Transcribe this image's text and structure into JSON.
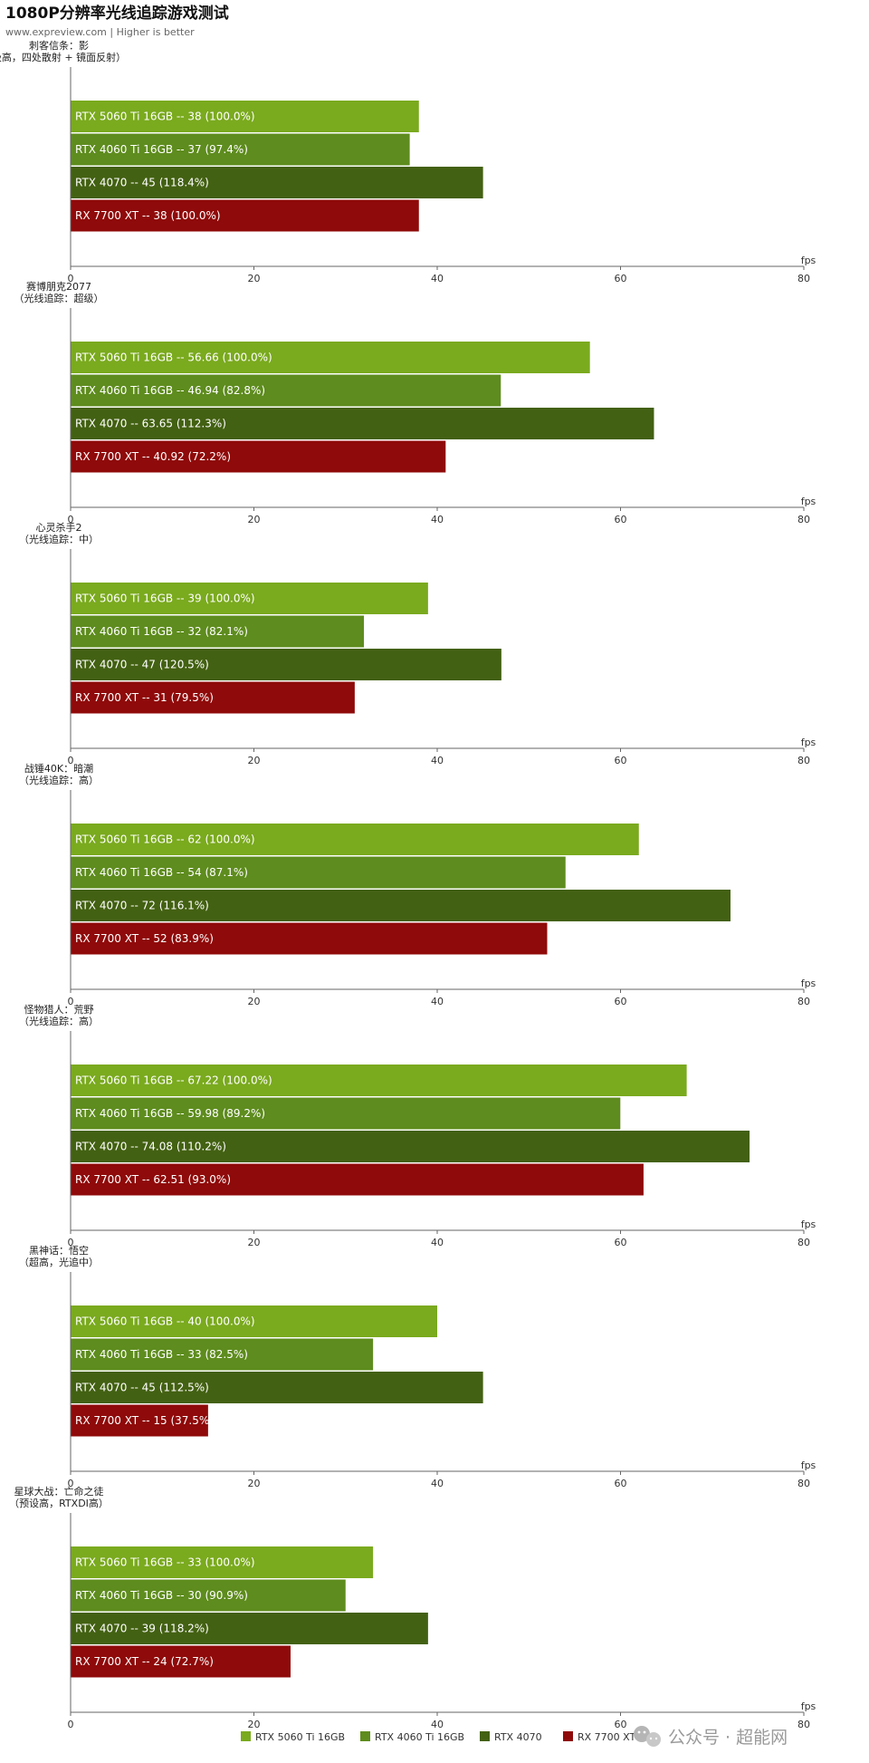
{
  "header": {
    "title": "1080P分辨率光线追踪游戏测试",
    "subtitle": "www.expreview.com | Higher is better"
  },
  "chart_data": {
    "type": "bar",
    "orientation": "horizontal",
    "unit": "fps",
    "xlim": [
      0,
      80
    ],
    "ticks": [
      "0",
      "20",
      "40",
      "60",
      "80"
    ],
    "grid": false,
    "legend_position": "bottom",
    "series": [
      {
        "name": "RTX 5060 Ti 16GB",
        "color": "#7aaa1e"
      },
      {
        "name": "RTX 4060 Ti 16GB",
        "color": "#5e8c1e"
      },
      {
        "name": "RTX 4070",
        "color": "#436112"
      },
      {
        "name": "RX 7700 XT",
        "color": "#8f0a0a"
      }
    ],
    "groups": [
      {
        "name_lines": [
          "刺客信条：影",
          "极高，四处散射 + 镜面反射）"
        ],
        "bars": [
          {
            "value": 38,
            "label": "RTX 5060 Ti 16GB  --  38 (100.0%)"
          },
          {
            "value": 37,
            "label": "RTX 4060 Ti 16GB  --  37 (97.4%)"
          },
          {
            "value": 45,
            "label": "RTX 4070  --  45 (118.4%)"
          },
          {
            "value": 38,
            "label": "RX 7700 XT  --  38 (100.0%)"
          }
        ]
      },
      {
        "name_lines": [
          "赛博朋克2077",
          "（光线追踪：超级）"
        ],
        "bars": [
          {
            "value": 56.66,
            "label": "RTX 5060 Ti 16GB  --  56.66 (100.0%)"
          },
          {
            "value": 46.94,
            "label": "RTX 4060 Ti 16GB  --  46.94 (82.8%)"
          },
          {
            "value": 63.65,
            "label": "RTX 4070  --  63.65 (112.3%)"
          },
          {
            "value": 40.92,
            "label": "RX 7700 XT  --  40.92 (72.2%)"
          }
        ]
      },
      {
        "name_lines": [
          "心灵杀手2",
          "（光线追踪：中）"
        ],
        "bars": [
          {
            "value": 39,
            "label": "RTX 5060 Ti 16GB  --  39 (100.0%)"
          },
          {
            "value": 32,
            "label": "RTX 4060 Ti 16GB  --  32 (82.1%)"
          },
          {
            "value": 47,
            "label": "RTX 4070  --  47 (120.5%)"
          },
          {
            "value": 31,
            "label": "RX 7700 XT  --  31 (79.5%)"
          }
        ]
      },
      {
        "name_lines": [
          "战锤40K：暗潮",
          "（光线追踪：高）"
        ],
        "bars": [
          {
            "value": 62,
            "label": "RTX 5060 Ti 16GB  --  62 (100.0%)"
          },
          {
            "value": 54,
            "label": "RTX 4060 Ti 16GB  --  54 (87.1%)"
          },
          {
            "value": 72,
            "label": "RTX 4070  --  72 (116.1%)"
          },
          {
            "value": 52,
            "label": "RX 7700 XT  --  52 (83.9%)"
          }
        ]
      },
      {
        "name_lines": [
          "怪物猎人：荒野",
          "（光线追踪：高）"
        ],
        "bars": [
          {
            "value": 67.22,
            "label": "RTX 5060 Ti 16GB  --  67.22 (100.0%)"
          },
          {
            "value": 59.98,
            "label": "RTX 4060 Ti 16GB  --  59.98 (89.2%)"
          },
          {
            "value": 74.08,
            "label": "RTX 4070  --  74.08 (110.2%)"
          },
          {
            "value": 62.51,
            "label": "RX 7700 XT  --  62.51 (93.0%)"
          }
        ]
      },
      {
        "name_lines": [
          "黑神话：悟空",
          "（超高，光追中）"
        ],
        "bars": [
          {
            "value": 40,
            "label": "RTX 5060 Ti 16GB  --  40 (100.0%)"
          },
          {
            "value": 33,
            "label": "RTX 4060 Ti 16GB  --  33 (82.5%)"
          },
          {
            "value": 45,
            "label": "RTX 4070  --  45 (112.5%)"
          },
          {
            "value": 15,
            "label": "RX 7700 XT  --  15 (37.5%)"
          }
        ]
      },
      {
        "name_lines": [
          "星球大战：亡命之徒",
          "（预设高，RTXDI高）"
        ],
        "bars": [
          {
            "value": 33,
            "label": "RTX 5060 Ti 16GB  --  33 (100.0%)"
          },
          {
            "value": 30,
            "label": "RTX 4060 Ti 16GB  --  30 (90.9%)"
          },
          {
            "value": 39,
            "label": "RTX 4070  --  39 (118.2%)"
          },
          {
            "value": 24,
            "label": "RX 7700 XT  --  24 (72.7%)"
          }
        ]
      }
    ]
  },
  "watermark": {
    "text": "公众号 · 超能网",
    "icon": "wechat-icon"
  }
}
